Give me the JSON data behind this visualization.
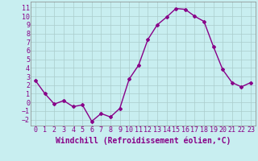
{
  "x": [
    0,
    1,
    2,
    3,
    4,
    5,
    6,
    7,
    8,
    9,
    10,
    11,
    12,
    13,
    14,
    15,
    16,
    17,
    18,
    19,
    20,
    21,
    22,
    23
  ],
  "y": [
    2.5,
    1.0,
    -0.2,
    0.2,
    -0.5,
    -0.3,
    -2.2,
    -1.3,
    -1.7,
    -0.7,
    2.7,
    4.3,
    7.3,
    9.0,
    9.9,
    10.9,
    10.8,
    10.0,
    9.4,
    6.5,
    3.8,
    2.3,
    1.8,
    2.3
  ],
  "line_color": "#880088",
  "marker": "D",
  "markersize": 2,
  "linewidth": 1.0,
  "bg_color": "#c8eef0",
  "grid_color": "#aacccc",
  "xlabel": "Windchill (Refroidissement éolien,°C)",
  "xlabel_fontsize": 7,
  "tick_fontsize": 6,
  "xlim": [
    -0.5,
    23.5
  ],
  "ylim": [
    -2.7,
    11.7
  ],
  "yticks": [
    -2,
    -1,
    0,
    1,
    2,
    3,
    4,
    5,
    6,
    7,
    8,
    9,
    10,
    11
  ],
  "xticks": [
    0,
    1,
    2,
    3,
    4,
    5,
    6,
    7,
    8,
    9,
    10,
    11,
    12,
    13,
    14,
    15,
    16,
    17,
    18,
    19,
    20,
    21,
    22,
    23
  ]
}
